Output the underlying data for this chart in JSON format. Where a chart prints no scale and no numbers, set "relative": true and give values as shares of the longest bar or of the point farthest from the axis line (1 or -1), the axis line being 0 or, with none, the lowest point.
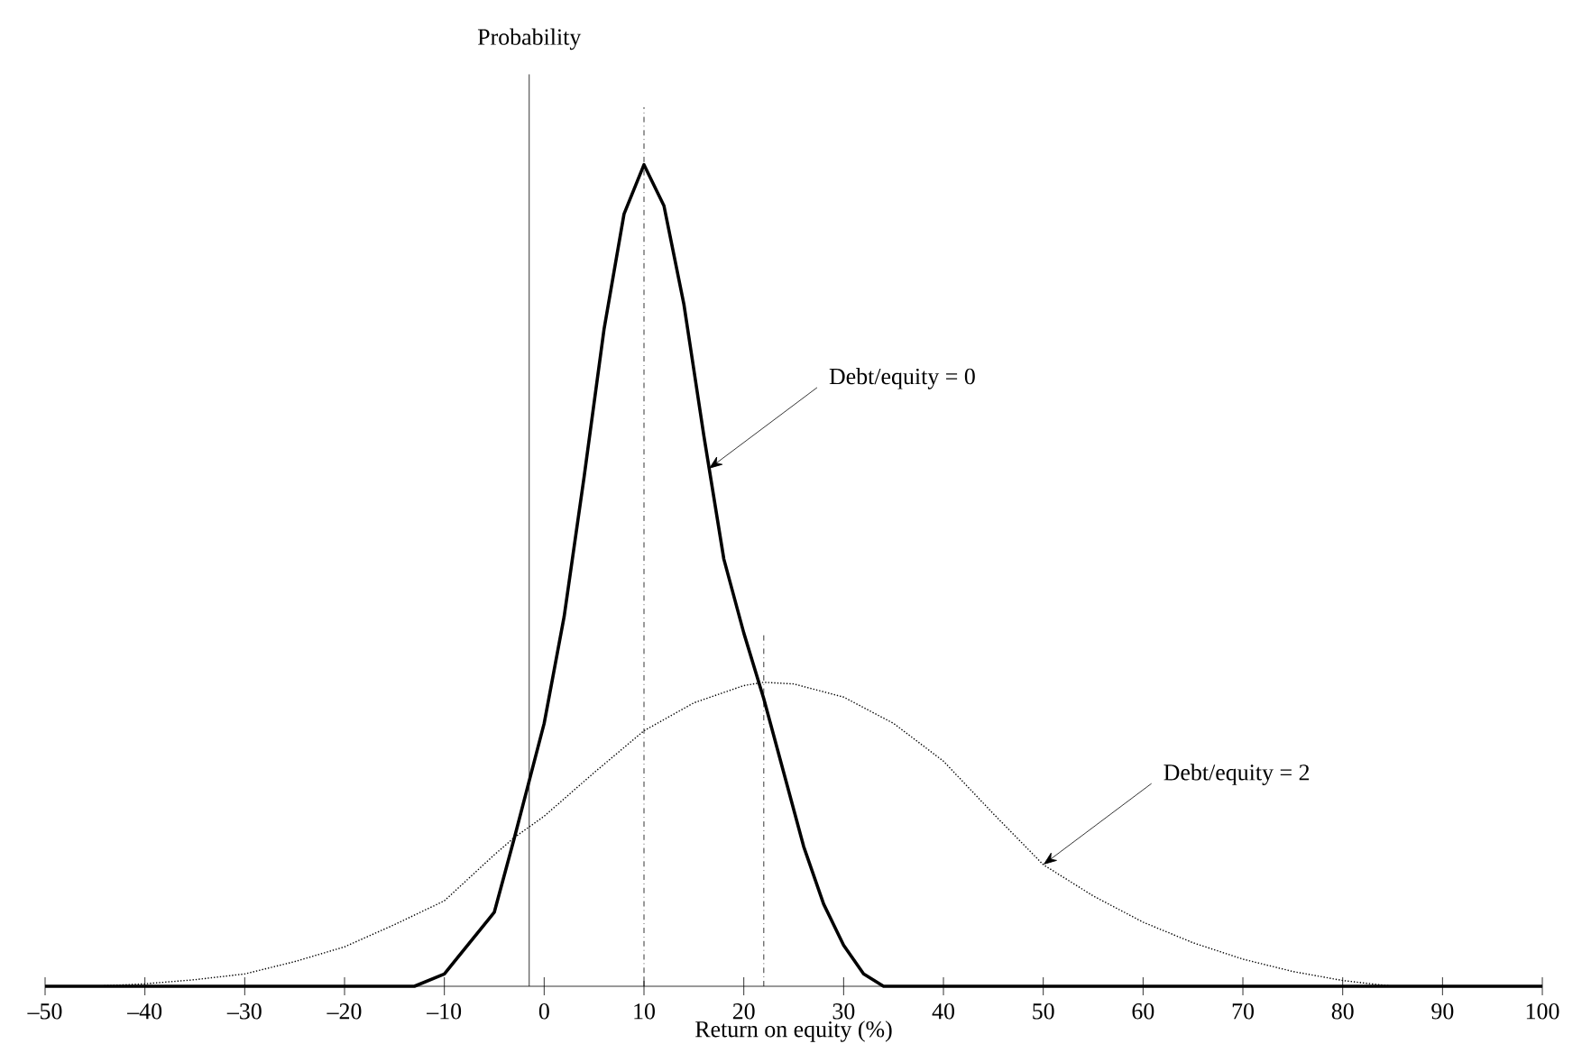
{
  "chart_data": {
    "type": "line",
    "relative": true,
    "xlabel": "Return on equity (%)",
    "ylabel": "Probability",
    "xlim": [
      -50,
      100
    ],
    "xticks": [
      {
        "value": -50,
        "label": "–50"
      },
      {
        "value": -40,
        "label": "–40"
      },
      {
        "value": -30,
        "label": "–30"
      },
      {
        "value": -20,
        "label": "–20"
      },
      {
        "value": -10,
        "label": "–10"
      },
      0,
      10,
      20,
      30,
      40,
      50,
      60,
      70,
      80,
      90,
      100
    ],
    "series": [
      {
        "color": "#000000",
        "line_style": "solid",
        "x": [
          -50,
          -13,
          -10,
          -5,
          -3,
          0,
          2,
          4,
          6,
          8,
          10,
          12,
          14,
          16,
          18,
          20,
          22,
          24,
          26,
          28,
          30,
          32,
          34,
          100
        ],
        "values": [
          0,
          0,
          0.015,
          0.09,
          0.18,
          0.32,
          0.45,
          0.62,
          0.8,
          0.94,
          1,
          0.95,
          0.83,
          0.67,
          0.52,
          0.43,
          0.35,
          0.26,
          0.17,
          0.1,
          0.05,
          0.015,
          0,
          0
        ]
      },
      {
        "color": "#000000",
        "line_style": "dotted",
        "x": [
          -45,
          -40,
          -35,
          -30,
          -25,
          -20,
          -15,
          -10,
          -5,
          -3,
          0,
          5,
          10,
          15,
          20,
          22,
          25,
          30,
          35,
          40,
          45,
          50,
          55,
          60,
          65,
          70,
          75,
          80,
          85
        ],
        "values": [
          0,
          0.003,
          0.008,
          0.015,
          0.03,
          0.048,
          0.075,
          0.104,
          0.16,
          0.181,
          0.207,
          0.26,
          0.311,
          0.345,
          0.366,
          0.37,
          0.368,
          0.352,
          0.32,
          0.274,
          0.21,
          0.148,
          0.11,
          0.078,
          0.053,
          0.033,
          0.018,
          0.007,
          0
        ]
      }
    ],
    "ref_lines": [
      {
        "axis": "x",
        "value": -1.5,
        "line_style": "solid"
      },
      {
        "axis": "x",
        "value": 10,
        "line_style": "dashdot"
      },
      {
        "axis": "x",
        "value": 22,
        "line_style": "dashdot"
      }
    ],
    "annotations": [
      {
        "text": "Debt/equity = 0",
        "x": 16.5,
        "y": 0.63
      },
      {
        "text": "Debt/equity = 2",
        "x": 50,
        "y": 0.148
      }
    ],
    "marker": "none"
  }
}
